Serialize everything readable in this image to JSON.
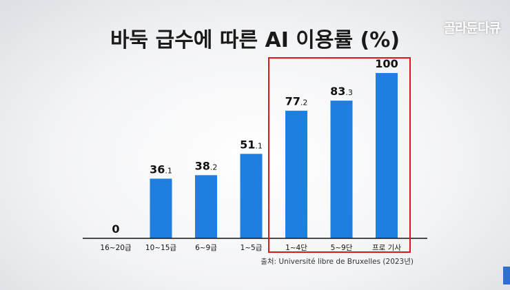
{
  "chart_data": {
    "type": "bar",
    "title": "바둑 급수에 따른 AI 이용률 (%)",
    "categories": [
      "16~20급",
      "10~15급",
      "6~9급",
      "1~5급",
      "1~4단",
      "5~9단",
      "프로 기사"
    ],
    "values": [
      0,
      36.1,
      38.2,
      51.1,
      77.2,
      83.3,
      100
    ],
    "value_labels": [
      {
        "main": "0",
        "dec": ""
      },
      {
        "main": "36",
        "dec": ".1"
      },
      {
        "main": "38",
        "dec": ".2"
      },
      {
        "main": "51",
        "dec": ".1"
      },
      {
        "main": "77",
        "dec": ".2"
      },
      {
        "main": "83",
        "dec": ".3"
      },
      {
        "main": "100",
        "dec": ""
      }
    ],
    "ylim": [
      0,
      100
    ],
    "grid": false,
    "highlighted_categories": [
      "1~4단",
      "5~9단",
      "프로 기사"
    ],
    "source": "출처: Université libre de Bruxelles (2023년)"
  },
  "colors": {
    "bar": "#1f7fe0",
    "highlight_box": "#e0141e",
    "axis": "#111111",
    "text": "#111111"
  },
  "watermark": "골라듄다큐"
}
